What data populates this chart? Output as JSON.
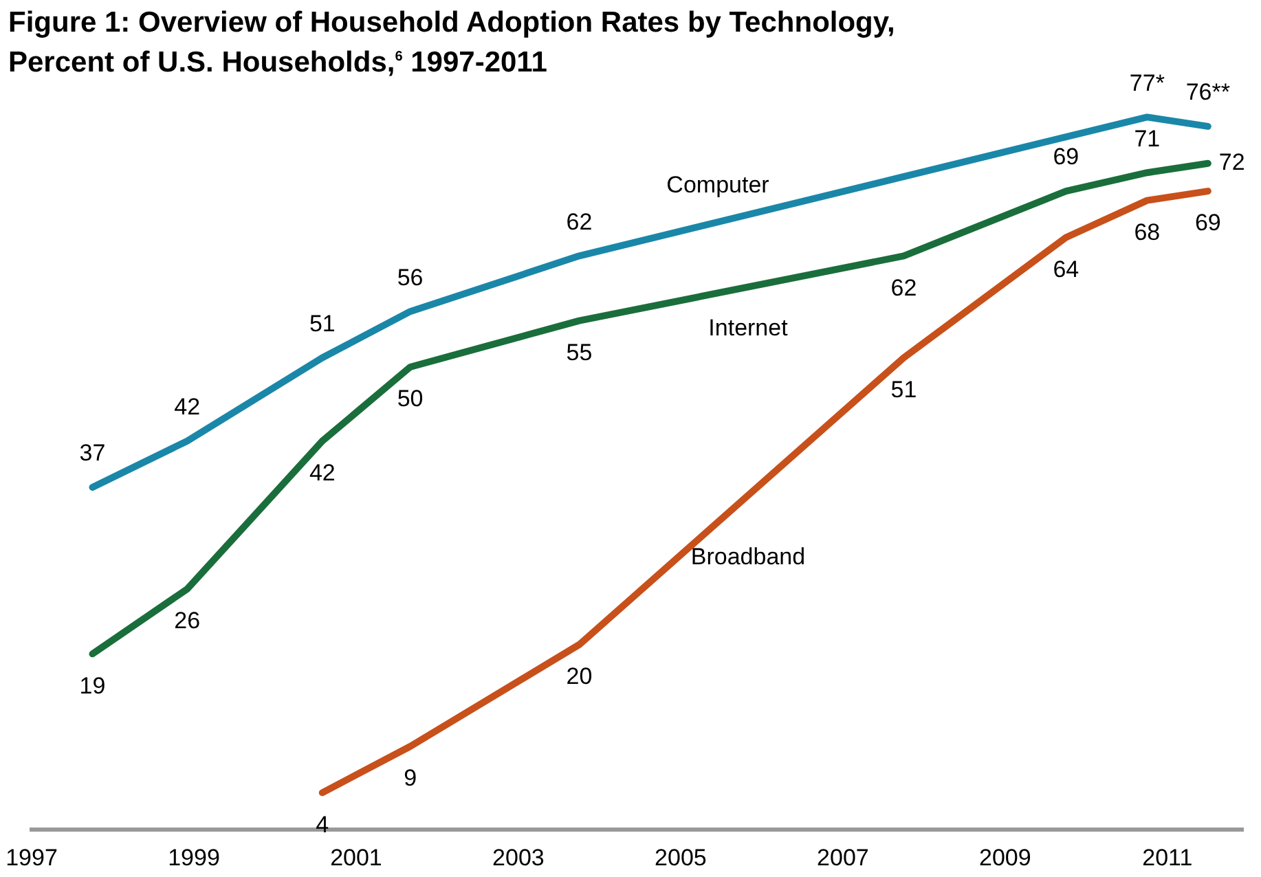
{
  "chart_data": {
    "type": "line",
    "title": "Figure 1: Overview of Household Adoption Rates by Technology,\nPercent of U.S. Households,$^{6}$ 1997-2011",
    "xlim": [
      "1997-01",
      "2011-12"
    ],
    "xticks": [
      "1997",
      "1999",
      "2001",
      "2003",
      "2005",
      "2007",
      "2009",
      "2011"
    ],
    "tick_labels": "x",
    "grid": false,
    "legend": false,
    "marker": "none",
    "line_style": "solid",
    "series": [
      {
        "name": "Computer",
        "color": "#1a87a8",
        "x": [
          "1997-10",
          "1998-12",
          "2000-08",
          "2001-09",
          "2003-10",
          "2010-10",
          "2011-07"
        ],
        "values": [
          37,
          42,
          51,
          56,
          62,
          77,
          76
        ],
        "value_labels": [
          "37",
          "42",
          "51",
          "56",
          "62",
          "77*",
          "76**"
        ]
      },
      {
        "name": "Internet",
        "color": "#1a6e3c",
        "x": [
          "1997-10",
          "1998-12",
          "2000-08",
          "2001-09",
          "2003-10",
          "2007-10",
          "2009-10",
          "2010-10",
          "2011-07"
        ],
        "values": [
          19,
          26,
          42,
          50,
          55,
          62,
          69,
          71,
          72
        ],
        "value_labels": [
          "19",
          "26",
          "42",
          "50",
          "55",
          "62",
          "69",
          "71",
          "72"
        ]
      },
      {
        "name": "Broadband",
        "color": "#c8501a",
        "x": [
          "2000-08",
          "2001-09",
          "2003-10",
          "2007-10",
          "2009-10",
          "2010-10",
          "2011-07"
        ],
        "values": [
          4,
          9,
          20,
          51,
          64,
          68,
          69
        ],
        "value_labels": [
          "4",
          "9",
          "20",
          "51",
          "64",
          "68",
          "69"
        ]
      }
    ]
  }
}
